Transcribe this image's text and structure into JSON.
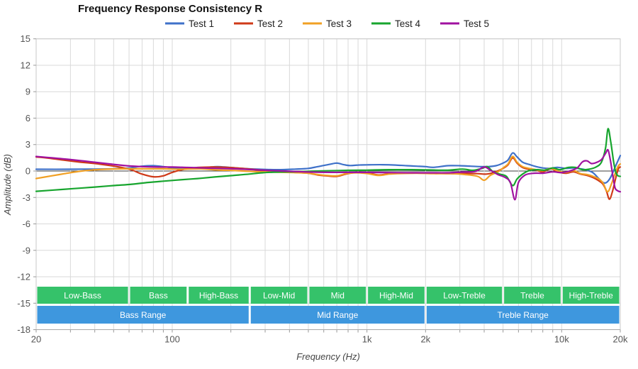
{
  "chart_data": {
    "type": "line",
    "title": "Frequency Response Consistency R",
    "xlabel": "Frequency (Hz)",
    "ylabel": "Amplitude (dB)",
    "x_scale": "log",
    "xlim": [
      20,
      20000
    ],
    "ylim": [
      -18,
      15
    ],
    "grid": true,
    "legend_position": "top-center",
    "y_ticks": [
      15,
      12,
      9,
      6,
      3,
      0,
      -3,
      -6,
      -9,
      -12,
      -15,
      -18
    ],
    "x_gridlines": [
      20,
      30,
      40,
      50,
      60,
      70,
      80,
      90,
      100,
      200,
      300,
      400,
      500,
      600,
      700,
      800,
      900,
      1000,
      2000,
      3000,
      4000,
      5000,
      6000,
      7000,
      8000,
      9000,
      10000,
      20000
    ],
    "x_tick_labels": [
      {
        "f": 20,
        "label": "20"
      },
      {
        "f": 100,
        "label": "100"
      },
      {
        "f": 1000,
        "label": "1k"
      },
      {
        "f": 2000,
        "label": "2k"
      },
      {
        "f": 10000,
        "label": "10k"
      },
      {
        "f": 20000,
        "label": "20k"
      }
    ],
    "colors": {
      "grid": "#d9d9d9",
      "zero_line": "#3d3d3d",
      "frame": "#c9c9c9",
      "axis_line": "#aaaaaa",
      "subrange_band": "#35c26a",
      "range_band": "#3e97de"
    },
    "series": [
      {
        "name": "Test 1",
        "color": "#3f71c9",
        "points": [
          [
            20,
            0.2
          ],
          [
            30,
            0.2
          ],
          [
            40,
            0.22
          ],
          [
            50,
            0.25
          ],
          [
            60,
            0.35
          ],
          [
            70,
            0.55
          ],
          [
            80,
            0.6
          ],
          [
            90,
            0.5
          ],
          [
            105,
            0.3
          ],
          [
            125,
            0.27
          ],
          [
            150,
            0.4
          ],
          [
            170,
            0.5
          ],
          [
            195,
            0.42
          ],
          [
            230,
            0.3
          ],
          [
            280,
            0.2
          ],
          [
            350,
            0.15
          ],
          [
            430,
            0.22
          ],
          [
            500,
            0.3
          ],
          [
            560,
            0.5
          ],
          [
            640,
            0.75
          ],
          [
            700,
            0.9
          ],
          [
            760,
            0.72
          ],
          [
            820,
            0.62
          ],
          [
            900,
            0.68
          ],
          [
            1000,
            0.7
          ],
          [
            1200,
            0.72
          ],
          [
            1400,
            0.68
          ],
          [
            1600,
            0.6
          ],
          [
            1800,
            0.55
          ],
          [
            2000,
            0.5
          ],
          [
            2200,
            0.42
          ],
          [
            2600,
            0.6
          ],
          [
            3000,
            0.6
          ],
          [
            3400,
            0.55
          ],
          [
            3800,
            0.5
          ],
          [
            4200,
            0.5
          ],
          [
            4600,
            0.6
          ],
          [
            5000,
            0.9
          ],
          [
            5300,
            1.25
          ],
          [
            5600,
            2.05
          ],
          [
            5900,
            1.6
          ],
          [
            6300,
            1.0
          ],
          [
            6800,
            0.75
          ],
          [
            7400,
            0.5
          ],
          [
            8000,
            0.35
          ],
          [
            8700,
            0.3
          ],
          [
            9500,
            0.42
          ],
          [
            10500,
            0.3
          ],
          [
            11500,
            0.35
          ],
          [
            12500,
            0.25
          ],
          [
            13500,
            0.1
          ],
          [
            14500,
            -0.2
          ],
          [
            15500,
            -0.85
          ],
          [
            16300,
            -1.3
          ],
          [
            17000,
            -1.3
          ],
          [
            17800,
            -0.75
          ],
          [
            18700,
            0.3
          ],
          [
            19400,
            1.1
          ],
          [
            20000,
            1.75
          ]
        ]
      },
      {
        "name": "Test 2",
        "color": "#cf3a18",
        "points": [
          [
            20,
            1.6
          ],
          [
            24,
            1.42
          ],
          [
            28,
            1.22
          ],
          [
            34,
            1.0
          ],
          [
            40,
            0.85
          ],
          [
            48,
            0.62
          ],
          [
            55,
            0.4
          ],
          [
            62,
            0.12
          ],
          [
            70,
            -0.35
          ],
          [
            80,
            -0.65
          ],
          [
            90,
            -0.55
          ],
          [
            100,
            -0.15
          ],
          [
            115,
            0.2
          ],
          [
            135,
            0.4
          ],
          [
            160,
            0.45
          ],
          [
            190,
            0.42
          ],
          [
            230,
            0.3
          ],
          [
            280,
            0.12
          ],
          [
            340,
            -0.05
          ],
          [
            420,
            -0.15
          ],
          [
            500,
            -0.25
          ],
          [
            560,
            -0.45
          ],
          [
            620,
            -0.55
          ],
          [
            700,
            -0.6
          ],
          [
            780,
            -0.35
          ],
          [
            880,
            -0.15
          ],
          [
            1000,
            -0.2
          ],
          [
            1150,
            -0.45
          ],
          [
            1300,
            -0.3
          ],
          [
            1500,
            -0.22
          ],
          [
            1800,
            -0.2
          ],
          [
            2200,
            -0.25
          ],
          [
            2700,
            -0.3
          ],
          [
            3200,
            -0.28
          ],
          [
            3700,
            -0.3
          ],
          [
            4100,
            -0.35
          ],
          [
            4500,
            -0.15
          ],
          [
            5000,
            0.3
          ],
          [
            5300,
            0.7
          ],
          [
            5600,
            1.5
          ],
          [
            5900,
            0.9
          ],
          [
            6300,
            0.4
          ],
          [
            6800,
            0.2
          ],
          [
            7400,
            0.1
          ],
          [
            8000,
            -0.1
          ],
          [
            8800,
            0.25
          ],
          [
            9600,
            -0.1
          ],
          [
            10500,
            -0.25
          ],
          [
            11500,
            -0.1
          ],
          [
            12500,
            -0.35
          ],
          [
            13500,
            -0.5
          ],
          [
            14500,
            -0.75
          ],
          [
            15500,
            -1.1
          ],
          [
            16300,
            -1.5
          ],
          [
            17000,
            -2.3
          ],
          [
            17600,
            -3.2
          ],
          [
            18300,
            -2.2
          ],
          [
            19000,
            -0.7
          ],
          [
            19600,
            0.3
          ],
          [
            20000,
            0.45
          ]
        ]
      },
      {
        "name": "Test 3",
        "color": "#f1a024",
        "points": [
          [
            20,
            -0.85
          ],
          [
            24,
            -0.55
          ],
          [
            28,
            -0.3
          ],
          [
            33,
            -0.05
          ],
          [
            38,
            0.1
          ],
          [
            45,
            0.2
          ],
          [
            55,
            0.25
          ],
          [
            70,
            0.25
          ],
          [
            90,
            0.25
          ],
          [
            110,
            0.2
          ],
          [
            140,
            0.25
          ],
          [
            170,
            0.12
          ],
          [
            210,
            0.05
          ],
          [
            260,
            -0.05
          ],
          [
            330,
            -0.12
          ],
          [
            420,
            -0.18
          ],
          [
            500,
            -0.25
          ],
          [
            560,
            -0.4
          ],
          [
            620,
            -0.5
          ],
          [
            700,
            -0.55
          ],
          [
            780,
            -0.3
          ],
          [
            880,
            -0.2
          ],
          [
            1000,
            -0.28
          ],
          [
            1150,
            -0.5
          ],
          [
            1300,
            -0.35
          ],
          [
            1500,
            -0.28
          ],
          [
            1800,
            -0.25
          ],
          [
            2200,
            -0.3
          ],
          [
            2700,
            -0.3
          ],
          [
            3200,
            -0.4
          ],
          [
            3700,
            -0.6
          ],
          [
            4000,
            -1.05
          ],
          [
            4300,
            -0.5
          ],
          [
            4700,
            -0.1
          ],
          [
            5000,
            0.35
          ],
          [
            5300,
            0.8
          ],
          [
            5600,
            1.65
          ],
          [
            5900,
            1.0
          ],
          [
            6300,
            0.5
          ],
          [
            6800,
            0.3
          ],
          [
            7400,
            0.15
          ],
          [
            8000,
            0.05
          ],
          [
            8800,
            0.3
          ],
          [
            9600,
            0.0
          ],
          [
            10500,
            -0.15
          ],
          [
            11500,
            0.05
          ],
          [
            12500,
            -0.3
          ],
          [
            13500,
            -0.4
          ],
          [
            14500,
            -0.6
          ],
          [
            15500,
            -0.9
          ],
          [
            16300,
            -1.35
          ],
          [
            17200,
            -2.35
          ],
          [
            18000,
            -1.5
          ],
          [
            18800,
            -0.3
          ],
          [
            19500,
            0.55
          ],
          [
            20000,
            0.8
          ]
        ]
      },
      {
        "name": "Test 4",
        "color": "#17a52e",
        "points": [
          [
            20,
            -2.3
          ],
          [
            25,
            -2.15
          ],
          [
            31,
            -2.0
          ],
          [
            40,
            -1.82
          ],
          [
            50,
            -1.65
          ],
          [
            62,
            -1.5
          ],
          [
            75,
            -1.3
          ],
          [
            90,
            -1.15
          ],
          [
            110,
            -1.0
          ],
          [
            135,
            -0.85
          ],
          [
            165,
            -0.68
          ],
          [
            200,
            -0.52
          ],
          [
            240,
            -0.38
          ],
          [
            290,
            -0.2
          ],
          [
            350,
            -0.12
          ],
          [
            430,
            -0.08
          ],
          [
            520,
            -0.02
          ],
          [
            650,
            0.03
          ],
          [
            800,
            0.08
          ],
          [
            1000,
            0.1
          ],
          [
            1300,
            0.15
          ],
          [
            1700,
            0.15
          ],
          [
            2100,
            0.12
          ],
          [
            2600,
            0.1
          ],
          [
            3100,
            0.22
          ],
          [
            3500,
            0.08
          ],
          [
            3900,
            0.3
          ],
          [
            4150,
            0.5
          ],
          [
            4450,
            -0.1
          ],
          [
            4800,
            -0.35
          ],
          [
            5200,
            -0.6
          ],
          [
            5600,
            -1.65
          ],
          [
            5900,
            -0.9
          ],
          [
            6300,
            -0.35
          ],
          [
            6800,
            0.05
          ],
          [
            7500,
            0.15
          ],
          [
            8200,
            0.1
          ],
          [
            9000,
            0.35
          ],
          [
            9800,
            0.15
          ],
          [
            10800,
            0.4
          ],
          [
            11800,
            0.4
          ],
          [
            12800,
            0.15
          ],
          [
            13800,
            0.2
          ],
          [
            15000,
            0.45
          ],
          [
            16000,
            1.0
          ],
          [
            16800,
            2.6
          ],
          [
            17300,
            4.8
          ],
          [
            17900,
            3.2
          ],
          [
            18500,
            1.0
          ],
          [
            19000,
            -0.2
          ],
          [
            19500,
            -0.55
          ],
          [
            20000,
            -0.6
          ]
        ]
      },
      {
        "name": "Test 5",
        "color": "#a011a0",
        "points": [
          [
            20,
            1.65
          ],
          [
            24,
            1.5
          ],
          [
            30,
            1.3
          ],
          [
            38,
            1.05
          ],
          [
            48,
            0.8
          ],
          [
            58,
            0.6
          ],
          [
            70,
            0.5
          ],
          [
            85,
            0.45
          ],
          [
            100,
            0.45
          ],
          [
            120,
            0.4
          ],
          [
            145,
            0.35
          ],
          [
            175,
            0.3
          ],
          [
            210,
            0.25
          ],
          [
            260,
            0.15
          ],
          [
            330,
            0.05
          ],
          [
            420,
            -0.05
          ],
          [
            520,
            -0.12
          ],
          [
            650,
            -0.15
          ],
          [
            800,
            -0.15
          ],
          [
            1000,
            -0.15
          ],
          [
            1300,
            -0.18
          ],
          [
            1700,
            -0.2
          ],
          [
            2100,
            -0.2
          ],
          [
            2600,
            -0.2
          ],
          [
            3100,
            -0.12
          ],
          [
            3600,
            -0.05
          ],
          [
            4000,
            0.45
          ],
          [
            4300,
            0.1
          ],
          [
            4700,
            -0.4
          ],
          [
            5100,
            -0.7
          ],
          [
            5450,
            -1.3
          ],
          [
            5750,
            -3.25
          ],
          [
            6000,
            -1.3
          ],
          [
            6500,
            -0.45
          ],
          [
            7200,
            -0.25
          ],
          [
            8000,
            -0.25
          ],
          [
            9000,
            -0.1
          ],
          [
            10000,
            -0.18
          ],
          [
            11000,
            0.0
          ],
          [
            12000,
            0.35
          ],
          [
            12800,
            1.05
          ],
          [
            13500,
            1.15
          ],
          [
            14200,
            0.85
          ],
          [
            15000,
            0.95
          ],
          [
            16000,
            1.3
          ],
          [
            16800,
            2.0
          ],
          [
            17300,
            2.4
          ],
          [
            17800,
            1.2
          ],
          [
            18300,
            -0.5
          ],
          [
            18800,
            -1.9
          ],
          [
            19400,
            -2.25
          ],
          [
            20000,
            -2.35
          ]
        ]
      }
    ],
    "subrange_bands": {
      "items": [
        {
          "label": "Low-Bass",
          "from": 20,
          "to": 60
        },
        {
          "label": "Bass",
          "from": 60,
          "to": 120
        },
        {
          "label": "High-Bass",
          "from": 120,
          "to": 250
        },
        {
          "label": "Low-Mid",
          "from": 250,
          "to": 500
        },
        {
          "label": "Mid",
          "from": 500,
          "to": 1000
        },
        {
          "label": "High-Mid",
          "from": 1000,
          "to": 2000
        },
        {
          "label": "Low-Treble",
          "from": 2000,
          "to": 5000
        },
        {
          "label": "Treble",
          "from": 5000,
          "to": 10000
        },
        {
          "label": "High-Treble",
          "from": 10000,
          "to": 20000
        }
      ]
    },
    "range_bands": {
      "items": [
        {
          "label": "Bass Range",
          "from": 20,
          "to": 250
        },
        {
          "label": "Mid Range",
          "from": 250,
          "to": 2000
        },
        {
          "label": "Treble Range",
          "from": 2000,
          "to": 20000
        }
      ]
    }
  }
}
